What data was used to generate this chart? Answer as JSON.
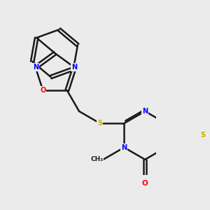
{
  "bg_color": "#ebebeb",
  "atom_colors": {
    "N": "#0000ff",
    "O": "#ff0000",
    "S": "#ccaa00",
    "C": "#1a1a1a"
  },
  "bond_color": "#1a1a1a",
  "bond_width": 1.8,
  "dbo": 0.03,
  "figsize": [
    3.0,
    3.0
  ],
  "dpi": 100
}
